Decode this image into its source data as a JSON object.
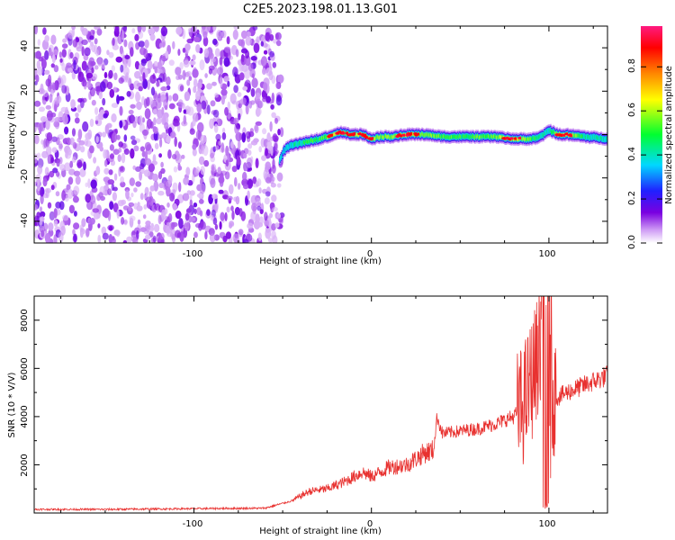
{
  "title": "C2E5.2023.198.01.13.G01",
  "charts": {
    "spectrogram": {
      "xlabel": "Height of straight line (km)",
      "ylabel": "Frequency (Hz)",
      "x_ticks": [
        "-100",
        "0",
        "100"
      ],
      "y_ticks": [
        "-40",
        "-20",
        "0",
        "20",
        "40"
      ]
    },
    "colorbar": {
      "label": "Normalized spectral amplitude",
      "ticks": [
        "0.0",
        "0.2",
        "0.4",
        "0.6",
        "0.8"
      ]
    },
    "snr": {
      "xlabel": "Height of straight line (km)",
      "ylabel": "SNR (10 * V/V)",
      "x_ticks": [
        "-100",
        "0",
        "100"
      ],
      "y_ticks": [
        "2000",
        "4000",
        "6000",
        "8000"
      ]
    }
  },
  "chart_data": [
    {
      "type": "heatmap",
      "xlim": [
        -190,
        133
      ],
      "ylim": [
        -50,
        50
      ],
      "colormap": "rainbow",
      "clim": [
        0,
        1
      ],
      "noise_region_x": [
        -190,
        -52
      ],
      "ridge": {
        "x": [
          -52,
          -50,
          -48,
          -45,
          -40,
          -35,
          -30,
          -25,
          -22,
          -18,
          -15,
          -10,
          -5,
          0,
          5,
          10,
          20,
          30,
          40,
          50,
          60,
          70,
          80,
          90,
          95,
          100,
          105,
          110,
          120,
          133
        ],
        "frequency": [
          -12,
          -8,
          -6,
          -5,
          -4,
          -3,
          -2,
          -1,
          0,
          1,
          0.5,
          0,
          0,
          -2,
          -1,
          -1,
          0,
          0,
          -1,
          -1,
          -1,
          -1,
          -2,
          -2,
          -1,
          2,
          0,
          0,
          -1,
          -2
        ],
        "amplitude": [
          0.5,
          0.45,
          0.5,
          0.55,
          0.6,
          0.7,
          0.7,
          0.8,
          0.95,
          0.9,
          0.85,
          0.95,
          0.95,
          0.9,
          0.8,
          0.8,
          0.95,
          0.8,
          0.75,
          0.7,
          0.75,
          0.8,
          0.95,
          0.7,
          0.6,
          0.55,
          0.95,
          0.95,
          0.6,
          0.55
        ]
      }
    },
    {
      "type": "line",
      "xlim": [
        -190,
        133
      ],
      "ylim": [
        0,
        9000
      ],
      "color": "#e8312f",
      "series": [
        {
          "x": [
            -190,
            -150,
            -100,
            -60,
            -45,
            -35,
            -25,
            -15,
            -5,
            0,
            10,
            20,
            30,
            35,
            37,
            40,
            50,
            60,
            70,
            80,
            85,
            88,
            92,
            95,
            98,
            100,
            102,
            105,
            110,
            120,
            133
          ],
          "y": [
            150,
            150,
            180,
            200,
            500,
            900,
            1000,
            1300,
            1700,
            1500,
            1900,
            2000,
            2500,
            2600,
            4000,
            3300,
            3400,
            3500,
            3700,
            4000,
            4400,
            5000,
            6000,
            7000,
            8500,
            8800,
            5000,
            4800,
            5000,
            5300,
            5700
          ]
        }
      ]
    }
  ]
}
